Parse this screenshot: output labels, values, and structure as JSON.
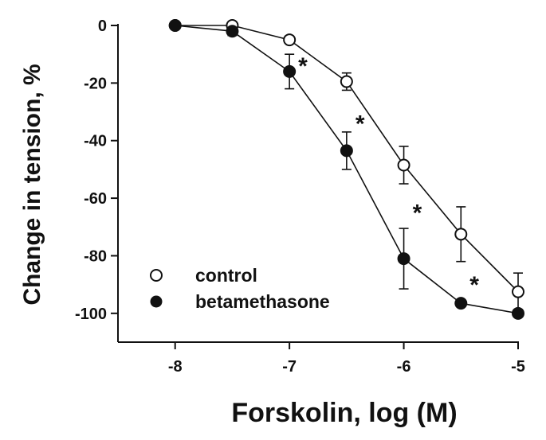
{
  "chart_data": {
    "type": "line",
    "title": "",
    "xlabel": "Forskolin, log (M)",
    "ylabel": "Change in tension, %",
    "xlim": [
      -8.5,
      -5
    ],
    "ylim": [
      -110,
      0
    ],
    "xticks": [
      -8,
      -7,
      -6,
      -5
    ],
    "xtick_labels": [
      "-8",
      "-7",
      "-6",
      "-5"
    ],
    "yticks": [
      0,
      -20,
      -40,
      -60,
      -80,
      -100
    ],
    "ytick_labels": [
      "0",
      "-20",
      "-40",
      "-60",
      "-80",
      "-100"
    ],
    "grid": false,
    "legend_position": "bottom-left",
    "series": [
      {
        "name": "control",
        "marker": "open-circle",
        "color": "#111111",
        "x": [
          -8,
          -7.5,
          -7,
          -6.5,
          -6,
          -5.5,
          -5
        ],
        "y": [
          0,
          0,
          -5,
          -19.5,
          -48.5,
          -72.5,
          -92.5
        ],
        "error": [
          0,
          0,
          0,
          3,
          6.5,
          9.5,
          6.5
        ]
      },
      {
        "name": "betamethasone",
        "marker": "filled-circle",
        "color": "#111111",
        "x": [
          -8,
          -7.5,
          -7,
          -6.5,
          -6,
          -5.5,
          -5
        ],
        "y": [
          0,
          -2,
          -16,
          -43.5,
          -81,
          -96.5,
          -100
        ],
        "error": [
          0,
          1.5,
          6,
          6.5,
          10.5,
          0,
          0
        ]
      }
    ],
    "annotations": [
      {
        "text": "*",
        "x": -7,
        "y": -13
      },
      {
        "text": "*",
        "x": -6.5,
        "y": -33
      },
      {
        "text": "*",
        "x": -6,
        "y": -64
      },
      {
        "text": "*",
        "x": -5.5,
        "y": -89
      }
    ]
  }
}
